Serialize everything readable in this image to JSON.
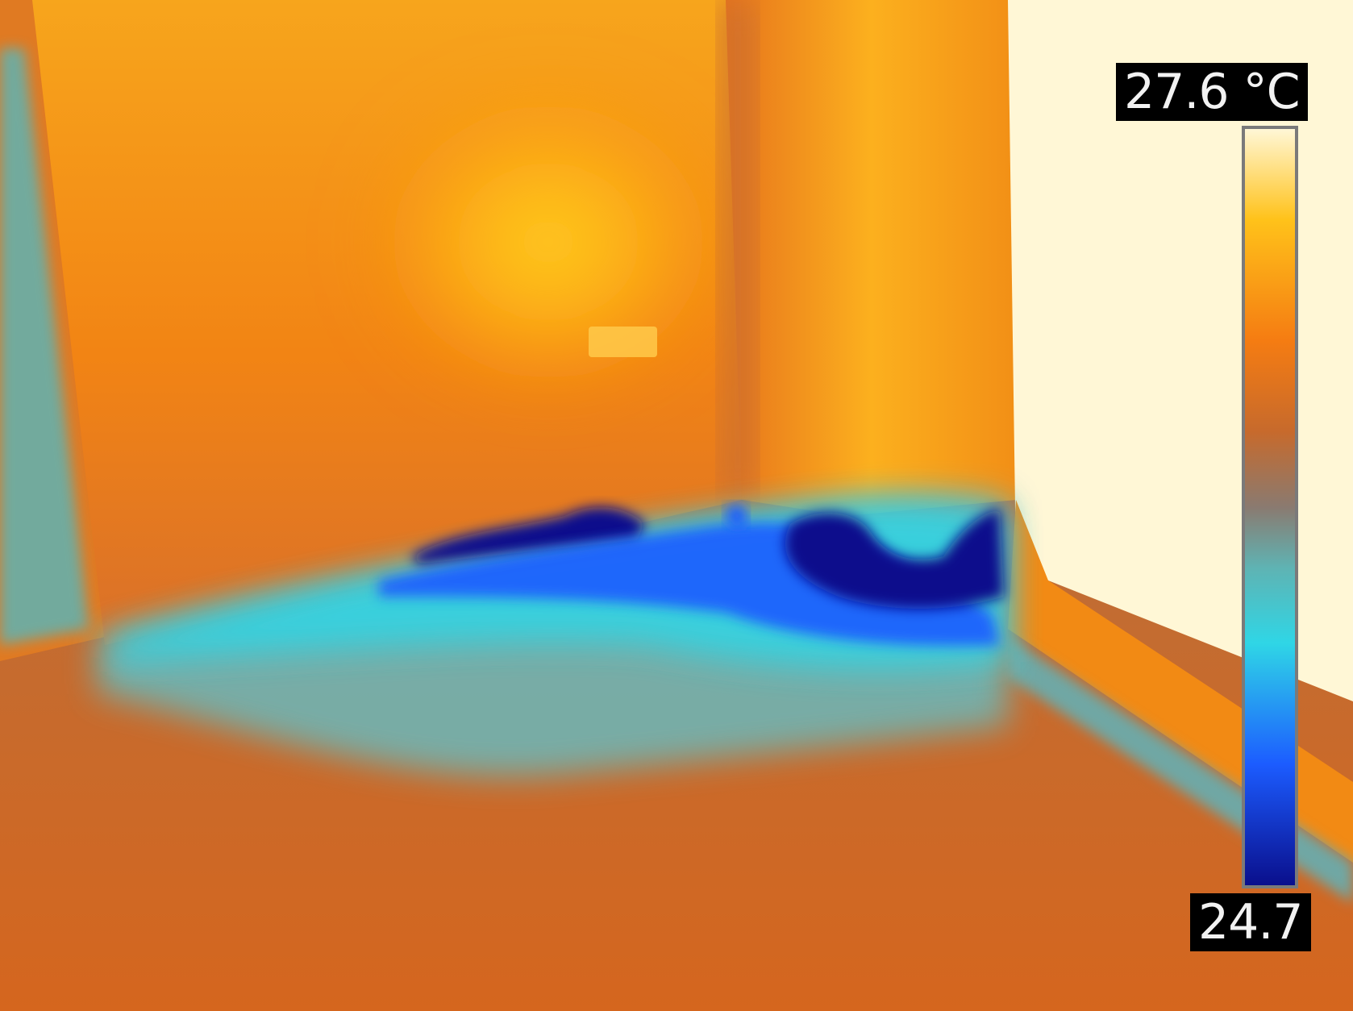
{
  "image": {
    "description_icon": "thermal-camera-scene",
    "palette": {
      "hot_pale": "#FFF7D6",
      "hot_yellow": "#FFC21A",
      "warm_orange": "#F57C12",
      "mid_brown": "#C76A2C",
      "neutral_gray": "#8A7A70",
      "cool_teal": "#5FB3B3",
      "cool_cyan": "#2FD6E6",
      "cold_blue": "#1C5CFF",
      "coldest_navy": "#0A0F8C"
    }
  },
  "scale": {
    "max_label": "27.6 °C",
    "min_label": "24.7",
    "max_value": 27.6,
    "min_value": 24.7,
    "unit": "°C"
  }
}
